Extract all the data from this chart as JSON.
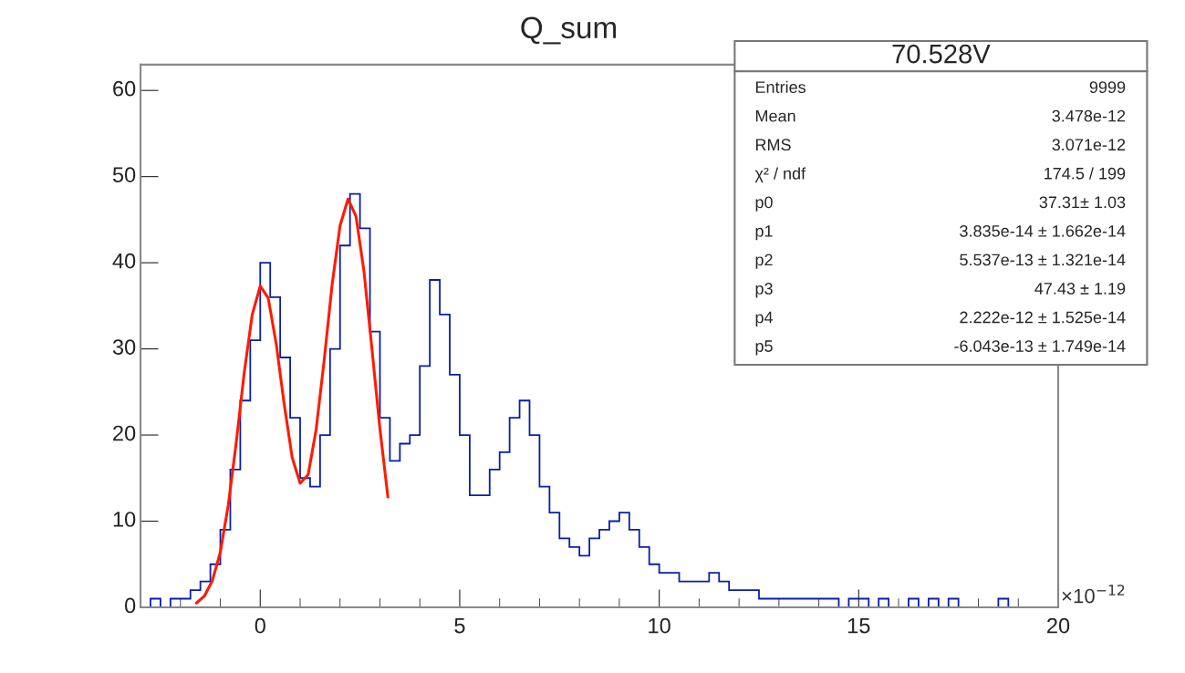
{
  "chart_data": {
    "type": "histogram",
    "title": "Q_sum",
    "bins": [
      -3,
      -2.75,
      -2.5,
      -2.25,
      -2,
      -1.75,
      -1.5,
      -1.25,
      -1,
      -0.75,
      -0.5,
      -0.25,
      0,
      0.25,
      0.5,
      0.75,
      1,
      1.25,
      1.5,
      1.75,
      2,
      2.25,
      2.5,
      2.75,
      3,
      3.25,
      3.5,
      3.75,
      4,
      4.25,
      4.5,
      4.75,
      5,
      5.25,
      5.5,
      5.75,
      6,
      6.25,
      6.5,
      6.75,
      7,
      7.25,
      7.5,
      7.75,
      8,
      8.25,
      8.5,
      8.75,
      9,
      9.25,
      9.5,
      9.75,
      10,
      10.25,
      10.5,
      10.75,
      11,
      11.25,
      11.5,
      11.75,
      12,
      12.25,
      12.5,
      12.75,
      13,
      13.25,
      13.5,
      13.75,
      14,
      14.25,
      14.5,
      14.75,
      15,
      15.25,
      15.5,
      15.75,
      16,
      16.25,
      16.5,
      16.75,
      17,
      17.25,
      17.5,
      17.75,
      18,
      18.25,
      18.5,
      18.75,
      19,
      19.25,
      19.5,
      19.75,
      20
    ],
    "values": [
      0,
      1,
      0,
      1,
      1,
      2,
      3,
      5,
      9,
      16,
      24,
      31,
      40,
      36,
      29,
      22,
      15,
      14,
      20,
      30,
      42,
      48,
      44,
      32,
      22,
      17,
      19,
      20,
      28,
      38,
      34,
      27,
      20,
      13,
      13,
      16,
      18,
      22,
      24,
      20,
      14,
      11,
      8,
      7,
      6,
      8,
      9,
      10,
      11,
      9,
      7,
      5,
      4,
      4,
      3,
      3,
      3,
      4,
      3,
      2,
      2,
      2,
      1,
      1,
      1,
      1,
      1,
      1,
      1,
      1,
      0,
      1,
      1,
      0,
      1,
      0,
      0,
      1,
      0,
      1,
      0,
      1,
      0,
      0,
      0,
      0,
      1,
      0,
      0,
      0,
      0,
      0
    ],
    "color": "#0a1fa8",
    "series": [
      {
        "type": "line",
        "color": "#ff1a00",
        "x": [
          -1.6,
          -1.4,
          -1.2,
          -1.0,
          -0.8,
          -0.6,
          -0.4,
          -0.2,
          0,
          0.2,
          0.4,
          0.6,
          0.8,
          1.0,
          1.2,
          1.4,
          1.6,
          1.8,
          2.0,
          2.2,
          2.4,
          2.6,
          2.8,
          3.0,
          3.2
        ],
        "values": [
          0.5,
          1.3,
          3.1,
          6.4,
          11.9,
          19.2,
          27.3,
          34.0,
          37.3,
          35.9,
          30.6,
          23.6,
          17.4,
          14.4,
          15.4,
          20.6,
          28.6,
          37.4,
          44.3,
          47.4,
          45.4,
          39.0,
          30.0,
          20.7,
          12.8
        ]
      }
    ],
    "xlim": [
      -3,
      20
    ],
    "xticks": [
      0,
      5,
      10,
      15,
      20
    ],
    "ylim": [
      0,
      63
    ],
    "yticks": [
      0,
      10,
      20,
      30,
      40,
      50,
      60
    ],
    "grid": false,
    "annotations": [
      "70.528V",
      "Entries",
      "9999",
      "Mean",
      "3.478e-12",
      "RMS",
      "3.071e-12",
      "χ² / ndf",
      "174.5 / 199",
      "p0",
      "37.31± 1.03",
      "p1",
      "3.835e-14 ± 1.662e-14",
      "p2",
      "5.537e-13 ± 1.321e-14",
      "p3",
      "47.43 ± 1.19",
      "p4",
      "2.222e-12 ± 1.525e-14",
      "p5",
      "-6.043e-13 ± 1.749e-14",
      "×10$^{−12}$"
    ]
  }
}
